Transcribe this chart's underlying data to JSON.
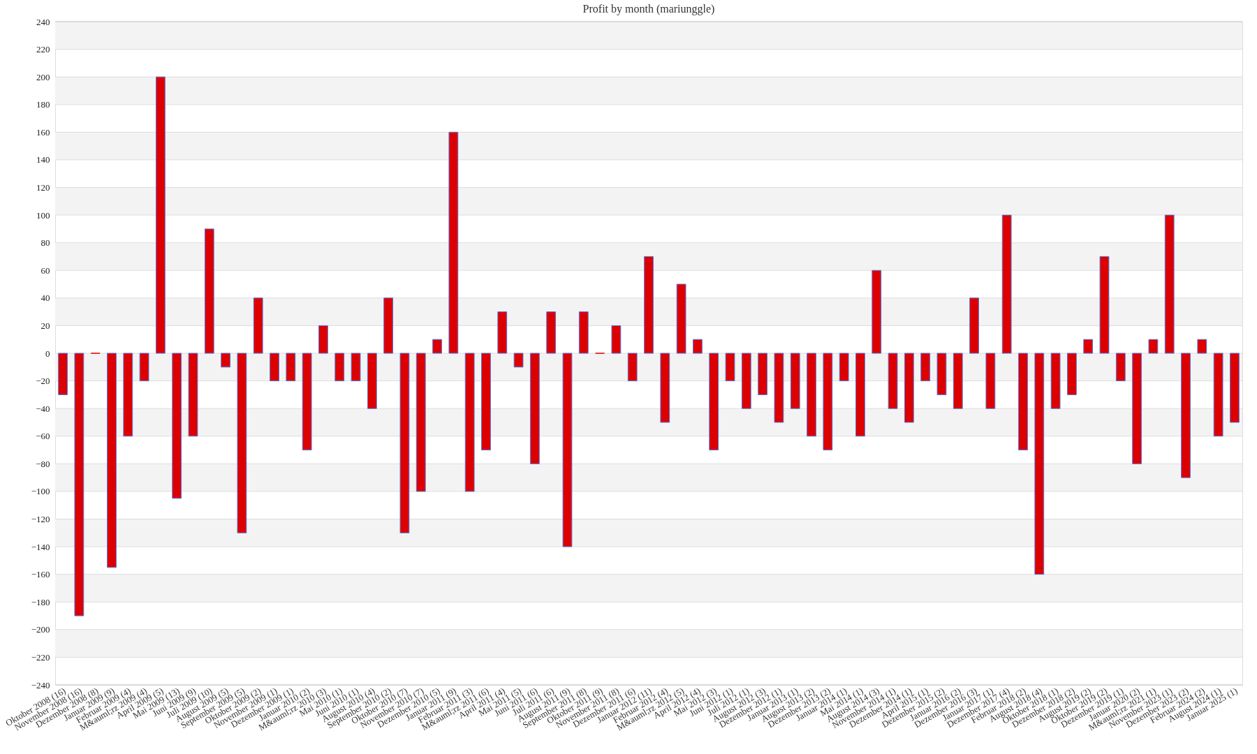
{
  "chart_data": {
    "type": "bar",
    "title": "Profit by month  (mariunggle)",
    "categories": [
      "Oktober 2008 (16)",
      "November 2008 (16)",
      "Dezember 2008 (8)",
      "Januar 2009 (9)",
      "Februar 2009 (4)",
      "M&auml;rz 2009 (4)",
      "April 2009 (5)",
      "Mai 2009 (13)",
      "Juni 2009 (9)",
      "Juli 2009 (10)",
      "August 2009 (5)",
      "September 2009 (5)",
      "Oktober 2009 (2)",
      "November 2009 (1)",
      "Dezember 2009 (1)",
      "Januar 2010 (2)",
      "M&auml;rz 2010 (3)",
      "Mai 2010 (1)",
      "Juni 2010 (1)",
      "August 2010 (4)",
      "September 2010 (2)",
      "Oktober 2010 (7)",
      "November 2010 (7)",
      "Dezember 2010 (5)",
      "Januar 2011 (9)",
      "Februar 2011 (3)",
      "M&auml;rz 2011 (6)",
      "April 2011 (4)",
      "Mai 2011 (5)",
      "Juni 2011 (6)",
      "Juli 2011 (6)",
      "August 2011 (9)",
      "September 2011 (8)",
      "Oktober 2011 (9)",
      "November 2011 (8)",
      "Dezember 2011 (6)",
      "Januar 2012 (11)",
      "Februar 2012 (4)",
      "M&auml;rz 2012 (5)",
      "April 2012 (4)",
      "Mai 2012 (3)",
      "Juni 2012 (1)",
      "Juli 2012 (1)",
      "August 2012 (3)",
      "Dezember 2012 (1)",
      "Januar 2013 (1)",
      "August 2013 (2)",
      "Dezember 2013 (2)",
      "Januar 2014 (1)",
      "Mai 2014 (1)",
      "August 2014 (3)",
      "November 2014 (1)",
      "Dezember 2014 (1)",
      "April 2015 (1)",
      "Dezember 2015 (2)",
      "Januar 2016 (2)",
      "Dezember 2016 (3)",
      "Januar 2017 (1)",
      "Dezember 2017 (4)",
      "Februar 2018 (2)",
      "August 2018 (4)",
      "Oktober 2018 (1)",
      "Dezember 2018 (2)",
      "August 2019 (2)",
      "Oktober 2019 (2)",
      "Dezember 2019 (1)",
      "Januar 2020 (2)",
      "M&auml;rz 2021 (1)",
      "November 2023 (1)",
      "Dezember 2023 (2)",
      "Februar 2024 (2)",
      "August 2024 (1)",
      "Januar 2025 (1)"
    ],
    "series": [
      {
        "color": "#dd0000",
        "values": [
          -30,
          -190,
          0,
          -155,
          -60,
          -20,
          200,
          -105,
          -60,
          90,
          -10,
          -130,
          40,
          -20,
          -20,
          -70,
          20,
          -20,
          -20,
          -40,
          40,
          -130,
          -100,
          10,
          160,
          -100,
          -70,
          30,
          -10,
          -80,
          30,
          -140,
          30,
          0,
          20,
          -20,
          70,
          -50,
          50,
          10,
          -70,
          -20,
          -40,
          -30,
          -50,
          -40,
          -60,
          -70,
          -20,
          -60,
          60,
          -40,
          -50,
          -20,
          -30,
          -40,
          40,
          -40,
          100,
          -70,
          -160,
          -40,
          -30,
          10,
          70,
          -20,
          -80,
          10,
          100,
          -90,
          10,
          -60,
          -50
        ]
      }
    ],
    "ylim": [
      -240,
      240
    ],
    "yticks": [
      -240,
      -220,
      -200,
      -180,
      -160,
      -140,
      -120,
      -100,
      -80,
      -60,
      -40,
      -20,
      0,
      20,
      40,
      60,
      80,
      100,
      120,
      140,
      160,
      180,
      200,
      220,
      240
    ],
    "grid": "y",
    "bands": [
      {
        "axis": "y",
        "from": 220,
        "to": 240,
        "color": "#f3f3f3"
      },
      {
        "axis": "y",
        "from": 180,
        "to": 200,
        "color": "#f3f3f3"
      },
      {
        "axis": "y",
        "from": 140,
        "to": 160,
        "color": "#f3f3f3"
      },
      {
        "axis": "y",
        "from": 100,
        "to": 120,
        "color": "#f3f3f3"
      },
      {
        "axis": "y",
        "from": 60,
        "to": 80,
        "color": "#f3f3f3"
      },
      {
        "axis": "y",
        "from": 20,
        "to": 40,
        "color": "#f3f3f3"
      },
      {
        "axis": "y",
        "from": -20,
        "to": 0,
        "color": "#f3f3f3"
      },
      {
        "axis": "y",
        "from": -60,
        "to": -40,
        "color": "#f3f3f3"
      },
      {
        "axis": "y",
        "from": -100,
        "to": -80,
        "color": "#f3f3f3"
      },
      {
        "axis": "y",
        "from": -140,
        "to": -120,
        "color": "#f3f3f3"
      },
      {
        "axis": "y",
        "from": -180,
        "to": -160,
        "color": "#f3f3f3"
      },
      {
        "axis": "y",
        "from": -220,
        "to": -200,
        "color": "#f3f3f3"
      }
    ]
  }
}
